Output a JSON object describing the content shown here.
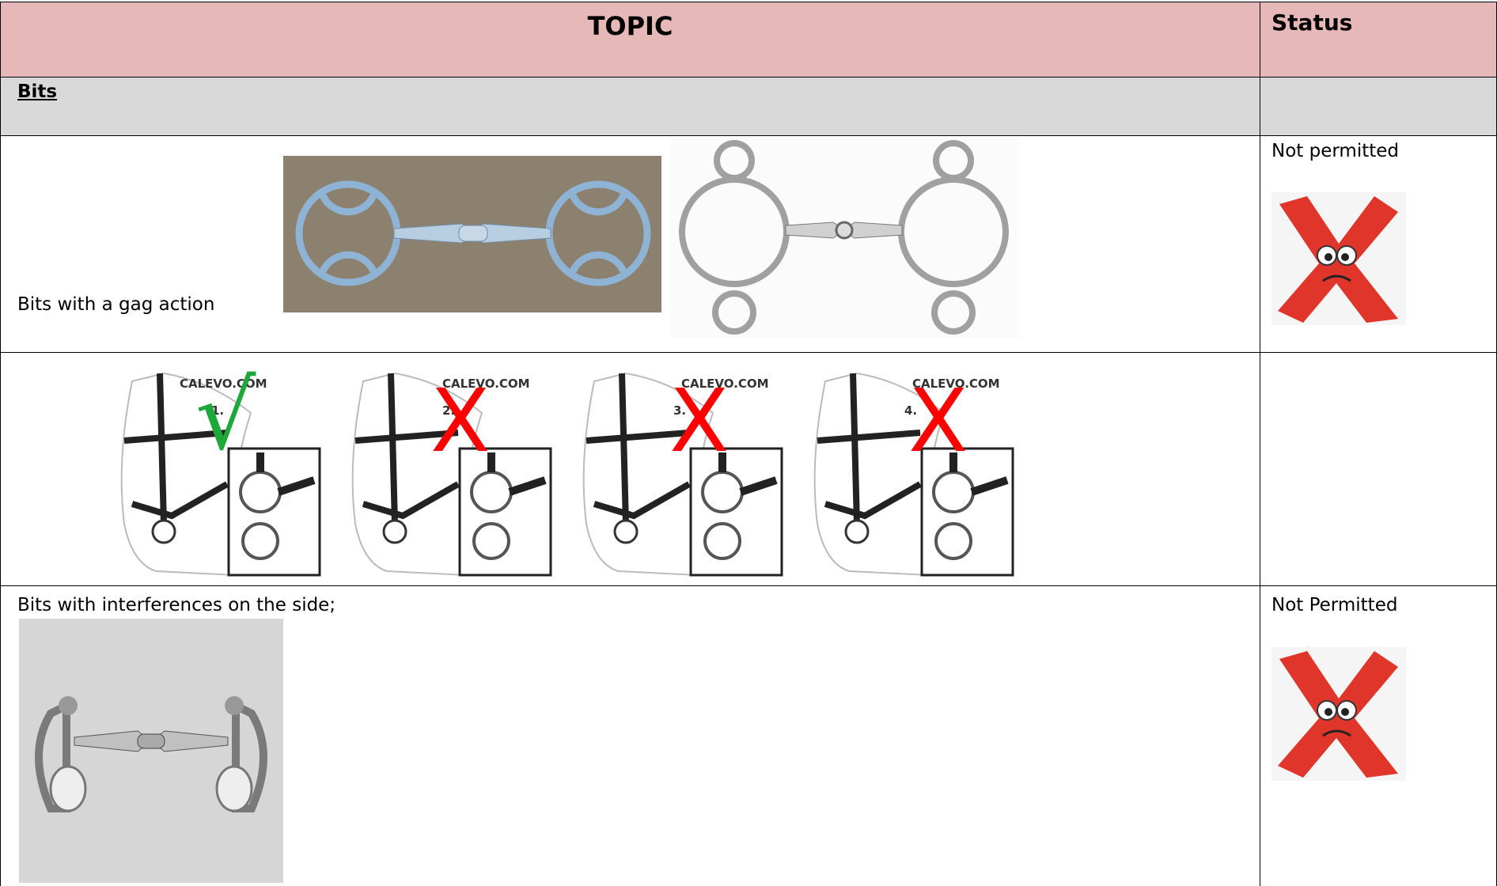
{
  "header": {
    "topic": "TOPIC",
    "status": "Status"
  },
  "section": "Bits",
  "rows": [
    {
      "topic": "Bits with a gag action",
      "status": "Not permitted"
    },
    {
      "panels": [
        {
          "site": "CALEVO.COM",
          "number": "1.",
          "verdict": "√"
        },
        {
          "site": "CALEVO.COM",
          "number": "2.",
          "verdict": "X"
        },
        {
          "site": "CALEVO.COM",
          "number": "3.",
          "verdict": "X"
        },
        {
          "site": "CALEVO.COM",
          "number": "4.",
          "verdict": "X"
        }
      ]
    },
    {
      "topic": "Bits with interferences on the side;",
      "status": "Not Permitted"
    }
  ]
}
